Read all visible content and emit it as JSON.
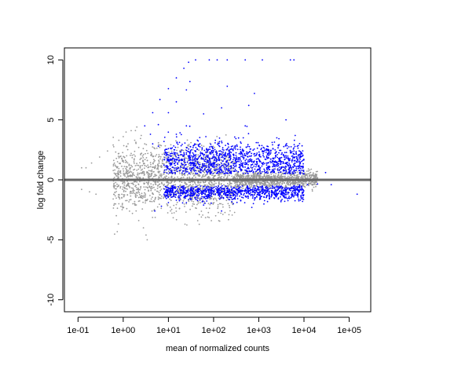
{
  "chart_data": {
    "type": "scatter",
    "subtype": "MA-plot",
    "title": "",
    "xlabel": "mean of normalized counts",
    "ylabel": "log fold change",
    "x_scale": "log10",
    "xlim": [
      0.05,
      300000
    ],
    "ylim": [
      -11,
      11
    ],
    "x_ticks": [
      0.1,
      1,
      10,
      100,
      1000,
      10000,
      100000
    ],
    "x_tick_labels": [
      "1e-01",
      "1e+00",
      "1e+01",
      "1e+02",
      "1e+03",
      "1e+04",
      "1e+05"
    ],
    "y_ticks": [
      -10,
      -5,
      0,
      5,
      10
    ],
    "y_tick_labels": [
      "-10",
      "-5",
      "0",
      "5",
      "10"
    ],
    "grid": false,
    "legend": "none",
    "reference_line": {
      "y": 0,
      "color": "#666666"
    },
    "colors": {
      "significant": "#0000ff",
      "not_significant": "#999999"
    },
    "series": [
      {
        "values": [
          [
            0.12,
            1.0
          ],
          [
            0.15,
            1.0
          ],
          [
            0.2,
            1.4
          ],
          [
            0.3,
            1.9
          ],
          [
            0.45,
            2.4
          ],
          [
            0.6,
            2.9
          ],
          [
            0.8,
            3.3
          ],
          [
            1.0,
            3.6
          ],
          [
            1.5,
            4.1
          ],
          [
            2.0,
            4.4
          ],
          [
            0.8,
            2.2
          ],
          [
            1.2,
            2.8
          ],
          [
            1.8,
            3.3
          ],
          [
            2.5,
            3.7
          ],
          [
            1.0,
            1.6
          ],
          [
            1.5,
            2.2
          ],
          [
            2.2,
            2.7
          ],
          [
            3.0,
            3.0
          ],
          [
            1.5,
            1.2
          ],
          [
            2.5,
            1.8
          ],
          [
            3.5,
            2.2
          ],
          [
            5.0,
            2.6
          ],
          [
            2.0,
            0.8
          ],
          [
            3.0,
            1.2
          ],
          [
            5.0,
            1.6
          ],
          [
            8.0,
            1.9
          ],
          [
            12.0,
            1.6
          ],
          [
            20.0,
            1.2
          ],
          [
            30.0,
            0.9
          ],
          [
            50.0,
            0.7
          ],
          [
            80.0,
            0.6
          ],
          [
            150.0,
            0.5
          ],
          [
            300.0,
            0.4
          ],
          [
            600.0,
            0.3
          ],
          [
            1500.0,
            0.25
          ],
          [
            3000.0,
            0.2
          ],
          [
            0.12,
            -0.8
          ],
          [
            0.18,
            -1.0
          ],
          [
            0.25,
            -1.2
          ],
          [
            0.6,
            -1.6
          ],
          [
            0.8,
            -2.0
          ],
          [
            1.2,
            -2.4
          ],
          [
            1.6,
            -2.8
          ],
          [
            2.2,
            -3.4
          ],
          [
            2.8,
            -4.0
          ],
          [
            3.2,
            -4.6
          ],
          [
            3.4,
            -5.0
          ],
          [
            1.5,
            -1.0
          ],
          [
            2.5,
            -1.5
          ],
          [
            4.0,
            -1.8
          ],
          [
            6.0,
            -1.6
          ],
          [
            10.0,
            -1.3
          ],
          [
            20.0,
            -1.0
          ],
          [
            40.0,
            -0.8
          ],
          [
            80.0,
            -0.6
          ],
          [
            200.0,
            -0.5
          ],
          [
            500.0,
            -0.4
          ],
          [
            1200.0,
            -0.3
          ],
          [
            3000.0,
            -0.25
          ],
          [
            8000.0,
            -0.2
          ],
          [
            20000.0,
            0.15
          ]
        ]
      },
      {
        "values": [
          [
            3.0,
            4.5
          ],
          [
            4.5,
            5.6
          ],
          [
            6.5,
            6.7
          ],
          [
            10.0,
            7.6
          ],
          [
            15.0,
            8.5
          ],
          [
            22.0,
            9.3
          ],
          [
            28.0,
            9.8
          ],
          [
            40.0,
            10.0
          ],
          [
            80.0,
            10.0
          ],
          [
            120.0,
            10.0
          ],
          [
            200.0,
            10.0
          ],
          [
            500.0,
            10.0
          ],
          [
            1200.0,
            10.0
          ],
          [
            5000.0,
            10.0
          ],
          [
            6000.0,
            10.0
          ],
          [
            4.0,
            3.8
          ],
          [
            6.0,
            4.6
          ],
          [
            10.0,
            5.6
          ],
          [
            15.0,
            6.5
          ],
          [
            25.0,
            7.5
          ],
          [
            4.5,
            3.0
          ],
          [
            6.0,
            2.8
          ],
          [
            8.0,
            3.2
          ],
          [
            10.0,
            2.6
          ],
          [
            15.0,
            3.8
          ],
          [
            25.0,
            4.5
          ],
          [
            30.0,
            2.2
          ],
          [
            50.0,
            3.0
          ],
          [
            60.0,
            5.5
          ],
          [
            80.0,
            1.8
          ],
          [
            100.0,
            2.4
          ],
          [
            150.0,
            6.0
          ],
          [
            200.0,
            1.6
          ],
          [
            300.0,
            2.8
          ],
          [
            400.0,
            1.4
          ],
          [
            500.0,
            4.5
          ],
          [
            700.0,
            1.5
          ],
          [
            800.0,
            7.2
          ],
          [
            1000.0,
            1.2
          ],
          [
            1200.0,
            2.4
          ],
          [
            1500.0,
            1.0
          ],
          [
            2000.0,
            1.6
          ],
          [
            2500.0,
            3.5
          ],
          [
            3000.0,
            0.9
          ],
          [
            4000.0,
            0.8
          ],
          [
            5000.0,
            1.2
          ],
          [
            6000.0,
            0.7
          ],
          [
            8000.0,
            0.6
          ],
          [
            10000.0,
            0.5
          ],
          [
            30.0,
            8.2
          ],
          [
            200.0,
            7.8
          ],
          [
            600.0,
            6.2
          ],
          [
            4000.0,
            5.0
          ],
          [
            5.0,
            -2.6
          ],
          [
            7.0,
            -2.2
          ],
          [
            10.0,
            -1.9
          ],
          [
            15.0,
            -1.7
          ],
          [
            25.0,
            -1.9
          ],
          [
            40.0,
            -1.5
          ],
          [
            60.0,
            -2.1
          ],
          [
            100.0,
            -1.2
          ],
          [
            150.0,
            -2.6
          ],
          [
            200.0,
            -1.0
          ],
          [
            300.0,
            -1.6
          ],
          [
            500.0,
            -0.9
          ],
          [
            700.0,
            -2.3
          ],
          [
            1000.0,
            -0.8
          ],
          [
            1500.0,
            -1.4
          ],
          [
            2000.0,
            -0.7
          ],
          [
            3000.0,
            -0.6
          ],
          [
            4000.0,
            -1.1
          ],
          [
            6000.0,
            -0.5
          ],
          [
            8000.0,
            -0.45
          ],
          [
            12000.0,
            -0.4
          ],
          [
            20000.0,
            -0.35
          ],
          [
            30000.0,
            0.6
          ],
          [
            40000.0,
            -0.4
          ],
          [
            150000.0,
            -1.2
          ]
        ]
      }
    ],
    "density_clusters": [
      {
        "color": "#999999",
        "x_range": [
          0.6,
          300
        ],
        "y_center": 0.0,
        "y_spread": 1.3,
        "count": 1500
      },
      {
        "color": "#999999",
        "x_range": [
          300,
          20000
        ],
        "y_center": 0.0,
        "y_spread": 0.35,
        "count": 1000
      },
      {
        "color": "#0000ff",
        "x_range": [
          8,
          10000
        ],
        "y_center": 1.6,
        "y_spread": 0.8,
        "count": 1200
      },
      {
        "color": "#0000ff",
        "x_range": [
          8,
          10000
        ],
        "y_center": -1.0,
        "y_spread": 0.35,
        "count": 900
      }
    ]
  }
}
